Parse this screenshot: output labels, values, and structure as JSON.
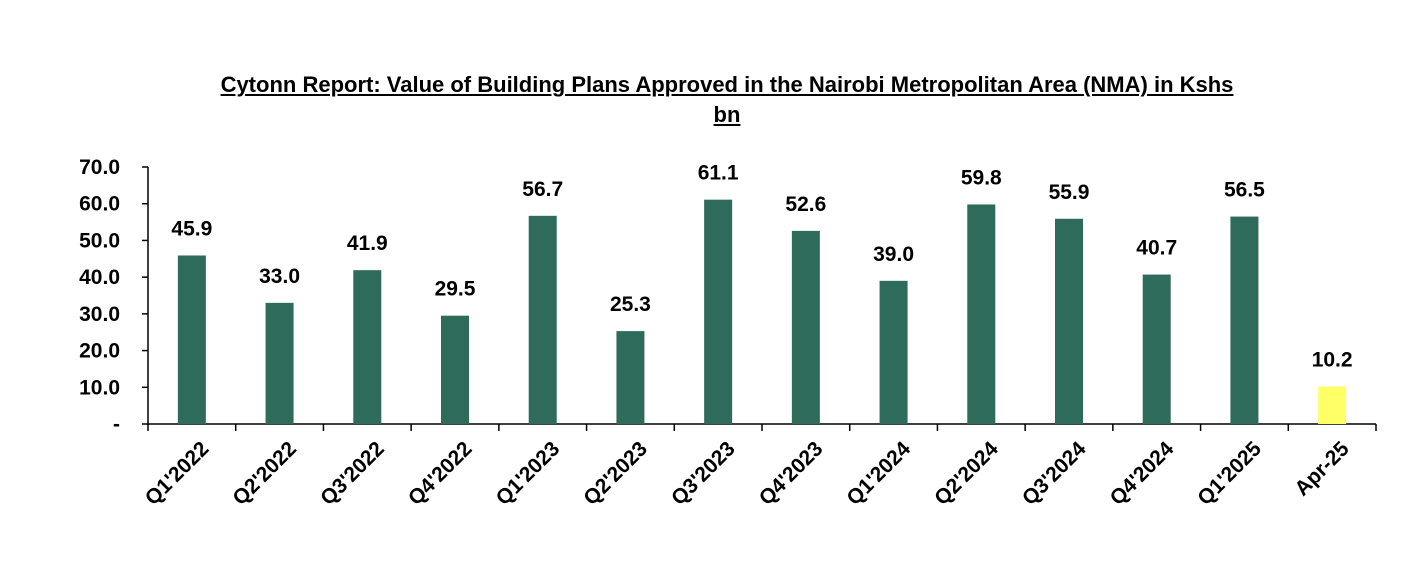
{
  "chart_data": {
    "type": "bar",
    "title_line1": "Cytonn Report: Value of Building Plans Approved in the Nairobi Metropolitan Area (NMA) in Kshs",
    "title_line2": "bn",
    "categories": [
      "Q1'2022",
      "Q2'2022",
      "Q3'2022",
      "Q4'2022",
      "Q1'2023",
      "Q2'2023",
      "Q3'2023",
      "Q4'2023",
      "Q1'2024",
      "Q2'2024",
      "Q3'2024",
      "Q4'2024",
      "Q1'2025",
      "Apr-25"
    ],
    "values": [
      45.9,
      33.0,
      41.9,
      29.5,
      56.7,
      25.3,
      61.1,
      52.6,
      39.0,
      59.8,
      55.9,
      40.7,
      56.5,
      10.2
    ],
    "value_labels": [
      "45.9",
      "33.0",
      "41.9",
      "29.5",
      "56.7",
      "25.3",
      "61.1",
      "52.6",
      "39.0",
      "59.8",
      "55.9",
      "40.7",
      "56.5",
      "10.2"
    ],
    "bar_colors": [
      "#2e6b5a",
      "#2e6b5a",
      "#2e6b5a",
      "#2e6b5a",
      "#2e6b5a",
      "#2e6b5a",
      "#2e6b5a",
      "#2e6b5a",
      "#2e6b5a",
      "#2e6b5a",
      "#2e6b5a",
      "#2e6b5a",
      "#2e6b5a",
      "#ffff66"
    ],
    "ylim": [
      0,
      70
    ],
    "yticks": [
      0,
      10,
      20,
      30,
      40,
      50,
      60,
      70
    ],
    "ytick_labels": [
      "-",
      "10.0",
      "20.0",
      "30.0",
      "40.0",
      "50.0",
      "60.0",
      "70.0"
    ],
    "xlabel": "",
    "ylabel": "",
    "grid": false,
    "legend": "none"
  }
}
